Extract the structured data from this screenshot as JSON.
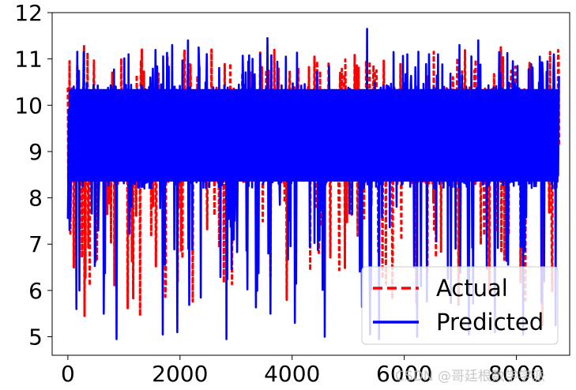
{
  "chart_data": {
    "type": "line",
    "title": "",
    "xlabel": "",
    "ylabel": "",
    "xlim": [
      -280,
      8950
    ],
    "ylim": [
      4.6,
      12.0
    ],
    "x_ticks": [
      0,
      2000,
      4000,
      6000,
      8000
    ],
    "x_tick_labels": [
      "0",
      "2000",
      "4000",
      "6000",
      "8000"
    ],
    "y_ticks": [
      5,
      6,
      7,
      8,
      9,
      10,
      11,
      12
    ],
    "y_tick_labels": [
      "5",
      "6",
      "7",
      "8",
      "9",
      "10",
      "11",
      "12"
    ],
    "grid": false,
    "legend_position": "lower-right",
    "n_points": 8760,
    "x_range": [
      0,
      8760
    ],
    "series": [
      {
        "name": "Actual",
        "style": "dashed",
        "color": "#ff0000",
        "band_values": [
          8.3,
          10.4
        ],
        "extreme_values": [
          [
            30,
            10.95
          ],
          [
            110,
            5.5
          ],
          [
            290,
            11.3
          ],
          [
            300,
            5.45
          ],
          [
            390,
            6.1
          ],
          [
            700,
            7.65
          ],
          [
            1320,
            11.2
          ],
          [
            1290,
            5.45
          ],
          [
            1960,
            6.2
          ],
          [
            2080,
            11.2
          ],
          [
            2560,
            11.2
          ],
          [
            3900,
            5.8
          ],
          [
            4400,
            11.05
          ],
          [
            4500,
            5.5
          ],
          [
            5380,
            10.95
          ],
          [
            7720,
            11.25
          ],
          [
            7730,
            6.85
          ],
          [
            8460,
            5.25
          ],
          [
            8600,
            11.15
          ]
        ]
      },
      {
        "name": "Predicted",
        "style": "solid",
        "color": "#0000ff",
        "band_values": [
          8.2,
          10.5
        ],
        "extreme_values": [
          [
            150,
            5.6
          ],
          [
            280,
            11.15
          ],
          [
            550,
            10.95
          ],
          [
            640,
            5.5
          ],
          [
            870,
            4.95
          ],
          [
            1080,
            11.1
          ],
          [
            1520,
            11.05
          ],
          [
            1690,
            5.05
          ],
          [
            1860,
            11.3
          ],
          [
            1950,
            5.1
          ],
          [
            2140,
            11.4
          ],
          [
            2330,
            11.25
          ],
          [
            2720,
            11.05
          ],
          [
            2830,
            4.95
          ],
          [
            3290,
            11.0
          ],
          [
            3560,
            11.45
          ],
          [
            3610,
            5.5
          ],
          [
            3890,
            11.05
          ],
          [
            3960,
            11.6
          ],
          [
            4050,
            5.3
          ],
          [
            4580,
            5.0
          ],
          [
            4660,
            10.85
          ],
          [
            5340,
            11.65
          ],
          [
            5390,
            5.05
          ],
          [
            5550,
            4.95
          ],
          [
            5810,
            11.15
          ],
          [
            6050,
            11.1
          ],
          [
            6230,
            5.0
          ],
          [
            6600,
            11.1
          ],
          [
            6980,
            11.3
          ],
          [
            7150,
            5.05
          ],
          [
            7320,
            11.4
          ],
          [
            7620,
            5.1
          ],
          [
            7690,
            11.15
          ],
          [
            7940,
            11.2
          ],
          [
            8120,
            5.05
          ],
          [
            8290,
            10.9
          ],
          [
            8420,
            11.05
          ],
          [
            8670,
            11.1
          ],
          [
            8700,
            5.25
          ]
        ],
        "notable_gaps": [
          [
            4620,
            5000
          ]
        ]
      }
    ]
  },
  "legend": {
    "actual_label": "Actual",
    "predicted_label": "Predicted"
  },
  "watermark": "CSDN @哥廷根数学学派"
}
